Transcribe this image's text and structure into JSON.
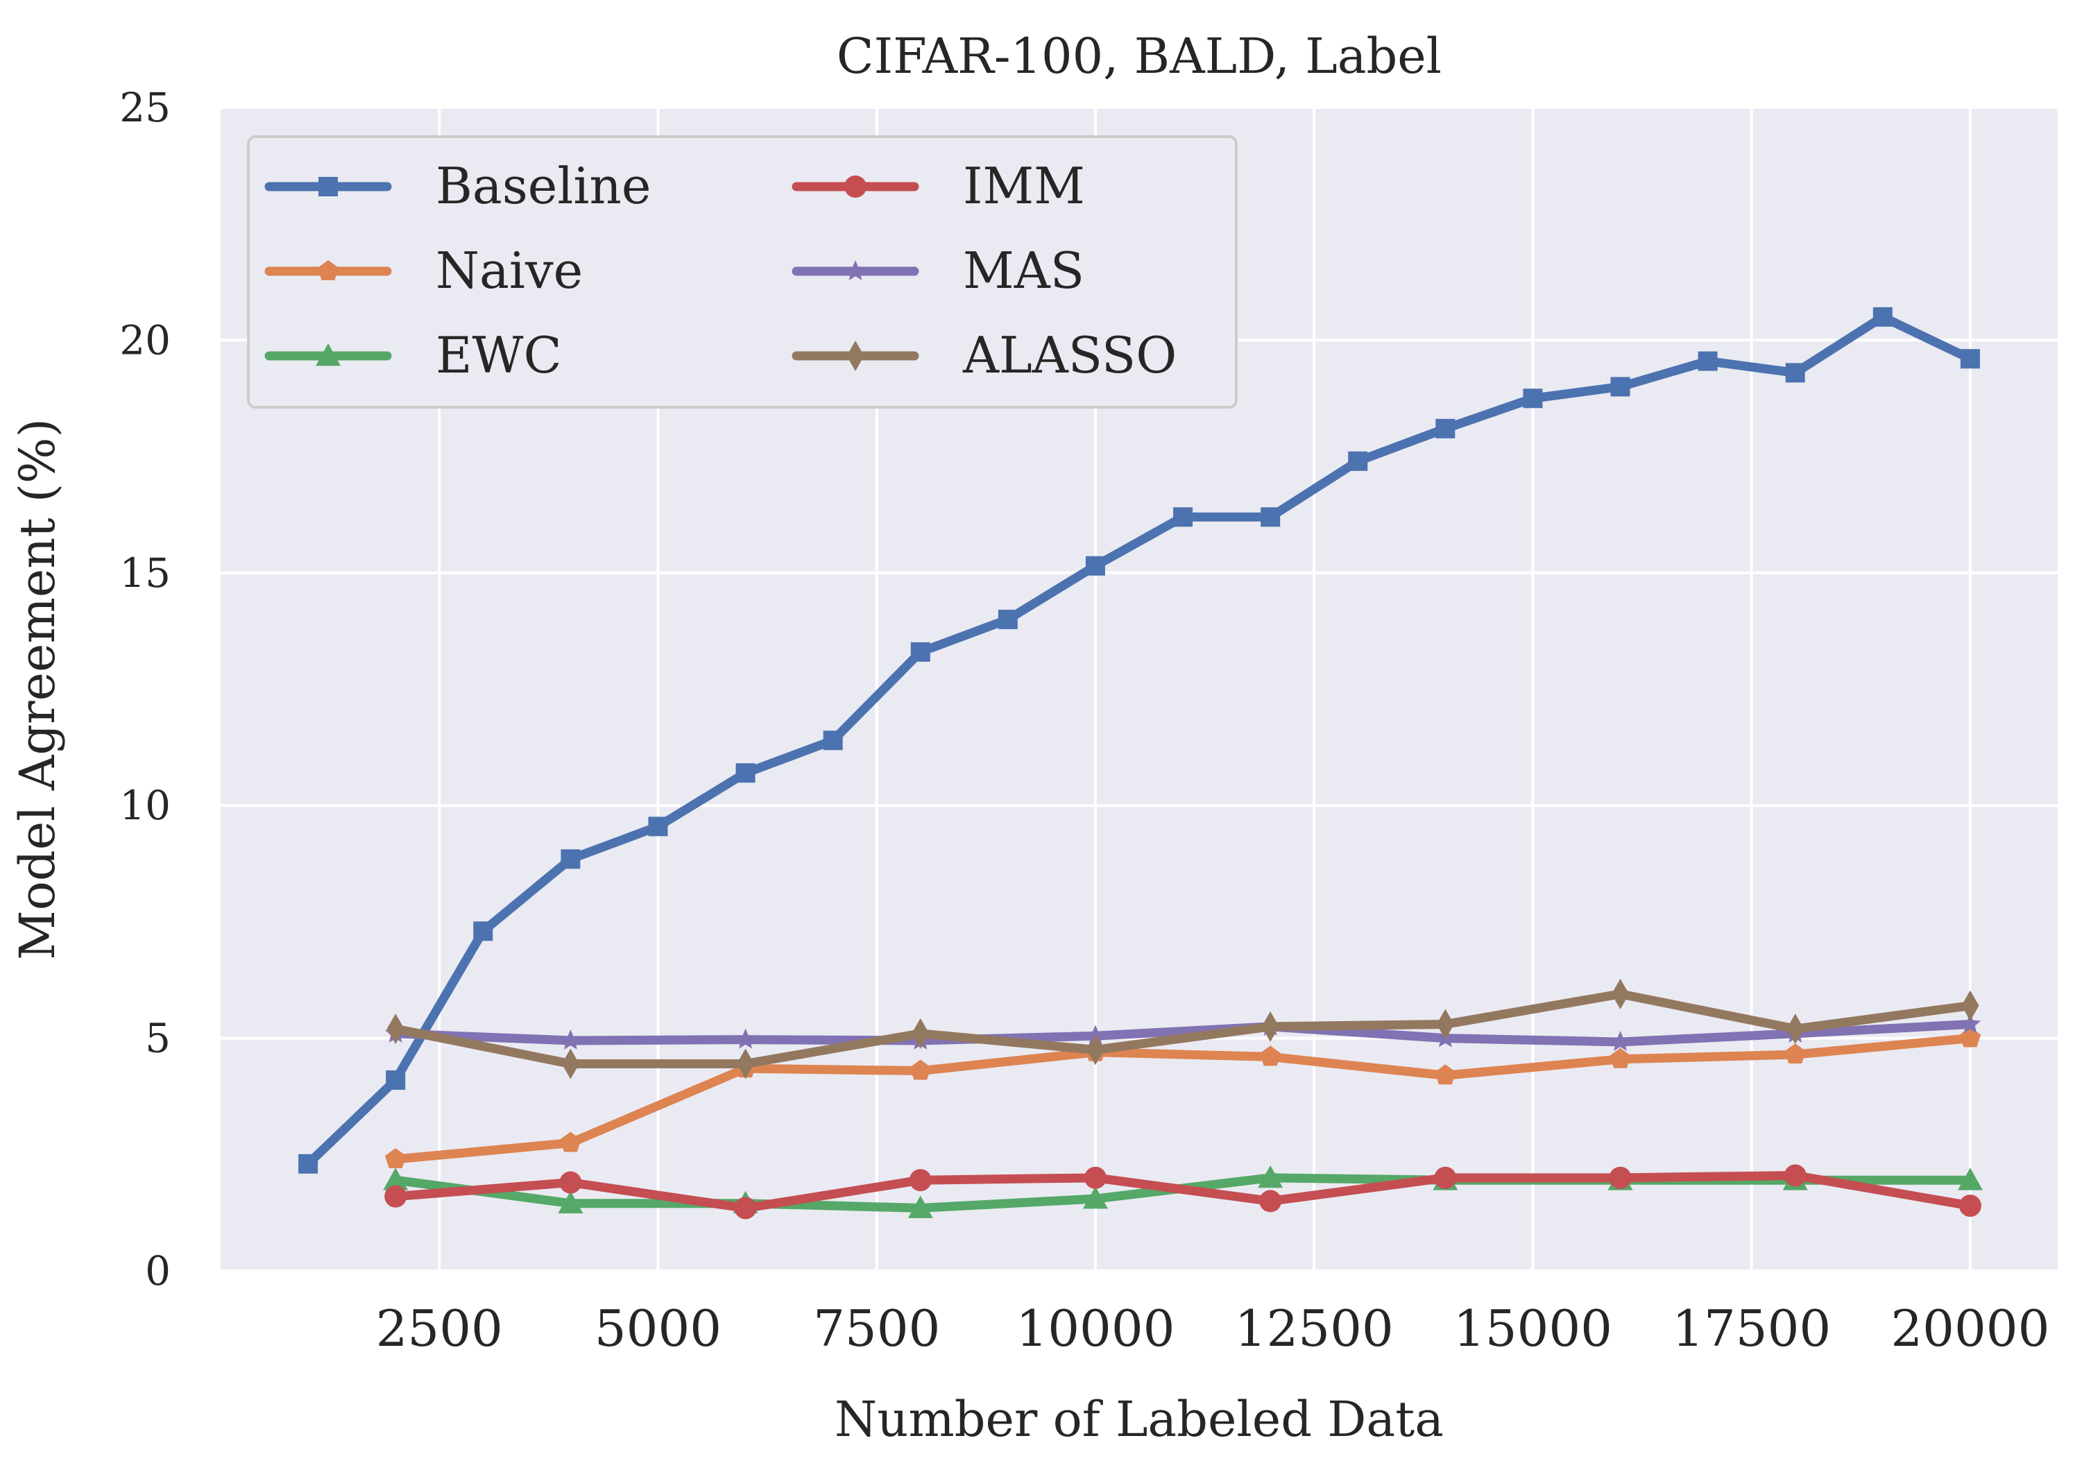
{
  "chart_data": {
    "type": "line",
    "title": "CIFAR-100, BALD, Label",
    "xlabel": "Number of Labeled Data",
    "ylabel": "Model Agreement (%)",
    "xlim": [
      0,
      21000
    ],
    "ylim": [
      0,
      25
    ],
    "xticks": [
      2500,
      5000,
      7500,
      10000,
      12500,
      15000,
      17500,
      20000
    ],
    "yticks": [
      0,
      5,
      10,
      15,
      20,
      25
    ],
    "grid": true,
    "legend_position": "top-left",
    "legend_columns": 2,
    "series": [
      {
        "name": "Baseline",
        "color": "#4c72b0",
        "marker": "square",
        "x": [
          1000,
          2000,
          3000,
          4000,
          5000,
          6000,
          7000,
          8000,
          9000,
          10000,
          11000,
          12000,
          13000,
          14000,
          15000,
          16000,
          17000,
          18000,
          19000,
          20000
        ],
        "y": [
          2.3,
          4.1,
          7.3,
          8.85,
          9.55,
          10.7,
          11.4,
          13.3,
          14.0,
          15.15,
          16.2,
          16.2,
          17.4,
          18.1,
          18.75,
          19.0,
          19.55,
          19.3,
          20.5,
          19.6
        ]
      },
      {
        "name": "Naive",
        "color": "#dd8452",
        "marker": "pentagon",
        "x": [
          2000,
          4000,
          6000,
          8000,
          10000,
          12000,
          14000,
          16000,
          18000,
          20000
        ],
        "y": [
          2.4,
          2.75,
          4.35,
          4.3,
          4.7,
          4.6,
          4.2,
          4.55,
          4.65,
          5.0
        ]
      },
      {
        "name": "EWC",
        "color": "#55a868",
        "marker": "triangle",
        "x": [
          2000,
          4000,
          6000,
          8000,
          10000,
          12000,
          14000,
          16000,
          18000,
          20000
        ],
        "y": [
          1.95,
          1.45,
          1.45,
          1.35,
          1.55,
          2.0,
          1.95,
          1.95,
          1.95,
          1.95
        ]
      },
      {
        "name": "IMM",
        "color": "#c44e52",
        "marker": "circle",
        "x": [
          2000,
          4000,
          6000,
          8000,
          10000,
          12000,
          14000,
          16000,
          18000,
          20000
        ],
        "y": [
          1.6,
          1.9,
          1.35,
          1.95,
          2.0,
          1.5,
          2.0,
          2.0,
          2.05,
          1.4
        ]
      },
      {
        "name": "MAS",
        "color": "#8172b3",
        "marker": "star",
        "x": [
          2000,
          4000,
          6000,
          8000,
          10000,
          12000,
          14000,
          16000,
          18000,
          20000
        ],
        "y": [
          5.1,
          4.95,
          4.97,
          4.95,
          5.05,
          5.25,
          5.0,
          4.92,
          5.1,
          5.3
        ]
      },
      {
        "name": "ALASSO",
        "color": "#937860",
        "marker": "diamond",
        "x": [
          2000,
          4000,
          6000,
          8000,
          10000,
          12000,
          14000,
          16000,
          18000,
          20000
        ],
        "y": [
          5.2,
          4.45,
          4.45,
          5.1,
          4.75,
          5.25,
          5.3,
          5.95,
          5.2,
          5.7
        ]
      }
    ]
  }
}
